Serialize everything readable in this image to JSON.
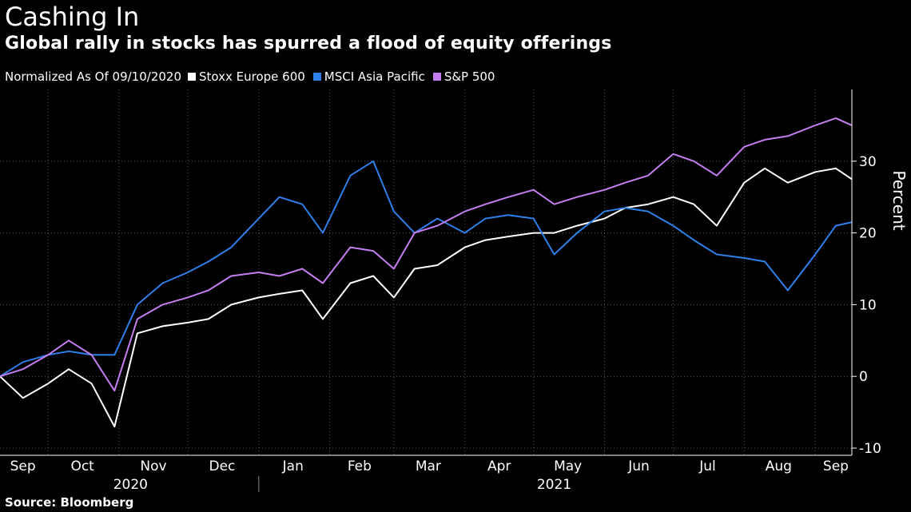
{
  "title": "Cashing In",
  "subtitle": "Global rally in stocks has spurred a flood of equity offerings",
  "legend_note": "Normalized As Of 09/10/2020",
  "source": "Source: Bloomberg",
  "chart_data": {
    "type": "line",
    "ylabel": "Percent",
    "ylim": [
      -11,
      40
    ],
    "yticks": [
      -10,
      0,
      10,
      20,
      30
    ],
    "grid": true,
    "legend_position": "top-left",
    "x_range": [
      "2020-09-10",
      "2021-09-17"
    ],
    "month_labels": [
      {
        "label": "Sep",
        "date": "2020-09-20"
      },
      {
        "label": "Oct",
        "date": "2020-10-16"
      },
      {
        "label": "Nov",
        "date": "2020-11-16"
      },
      {
        "label": "Dec",
        "date": "2020-12-16"
      },
      {
        "label": "Jan",
        "date": "2021-01-16"
      },
      {
        "label": "Feb",
        "date": "2021-02-14"
      },
      {
        "label": "Mar",
        "date": "2021-03-16"
      },
      {
        "label": "Apr",
        "date": "2021-04-16"
      },
      {
        "label": "May",
        "date": "2021-05-16"
      },
      {
        "label": "Jun",
        "date": "2021-06-16"
      },
      {
        "label": "Jul",
        "date": "2021-07-16"
      },
      {
        "label": "Aug",
        "date": "2021-08-16"
      },
      {
        "label": "Sep",
        "date": "2021-09-10"
      }
    ],
    "year_labels": [
      {
        "label": "2020",
        "date": "2020-11-06"
      },
      {
        "label": "2021",
        "date": "2021-05-10"
      }
    ],
    "year_divider": "2021-01-01",
    "x": [
      "2020-09-10",
      "2020-09-20",
      "2020-10-01",
      "2020-10-10",
      "2020-10-20",
      "2020-10-30",
      "2020-11-09",
      "2020-11-20",
      "2020-12-01",
      "2020-12-10",
      "2020-12-20",
      "2021-01-01",
      "2021-01-10",
      "2021-01-20",
      "2021-01-29",
      "2021-02-10",
      "2021-02-20",
      "2021-03-01",
      "2021-03-10",
      "2021-03-20",
      "2021-04-01",
      "2021-04-10",
      "2021-04-20",
      "2021-05-01",
      "2021-05-10",
      "2021-05-20",
      "2021-06-01",
      "2021-06-10",
      "2021-06-20",
      "2021-07-01",
      "2021-07-10",
      "2021-07-20",
      "2021-08-01",
      "2021-08-10",
      "2021-08-20",
      "2021-09-01",
      "2021-09-10",
      "2021-09-17"
    ],
    "series": [
      {
        "name": "Stoxx Europe 600",
        "color": "#ffffff",
        "values": [
          0,
          -3,
          -1,
          1,
          -1,
          -7,
          6,
          7,
          7.5,
          8,
          10,
          11,
          11.5,
          12,
          8,
          13,
          14,
          11,
          15,
          15.5,
          18,
          19,
          19.5,
          20,
          20,
          21,
          22,
          23.5,
          24,
          25,
          24,
          21,
          27,
          29,
          27,
          28.5,
          29,
          27.5
        ]
      },
      {
        "name": "MSCI Asia Pacific",
        "color": "#2f7fe8",
        "values": [
          0,
          2,
          3,
          3.5,
          3,
          3,
          10,
          13,
          14.5,
          16,
          18,
          22,
          25,
          24,
          20,
          28,
          30,
          23,
          20,
          22,
          20,
          22,
          22.5,
          22,
          17,
          20,
          23,
          23.5,
          23,
          21,
          19,
          17,
          16.5,
          16,
          12,
          17,
          21,
          21.5
        ]
      },
      {
        "name": "S&P 500",
        "color": "#c47ef0",
        "values": [
          0,
          1,
          3,
          5,
          3,
          -2,
          8,
          10,
          11,
          12,
          14,
          14.5,
          14,
          15,
          13,
          18,
          17.5,
          15,
          20,
          21,
          23,
          24,
          25,
          26,
          24,
          25,
          26,
          27,
          28,
          31,
          30,
          28,
          32,
          33,
          33.5,
          35,
          36,
          35
        ]
      }
    ]
  }
}
